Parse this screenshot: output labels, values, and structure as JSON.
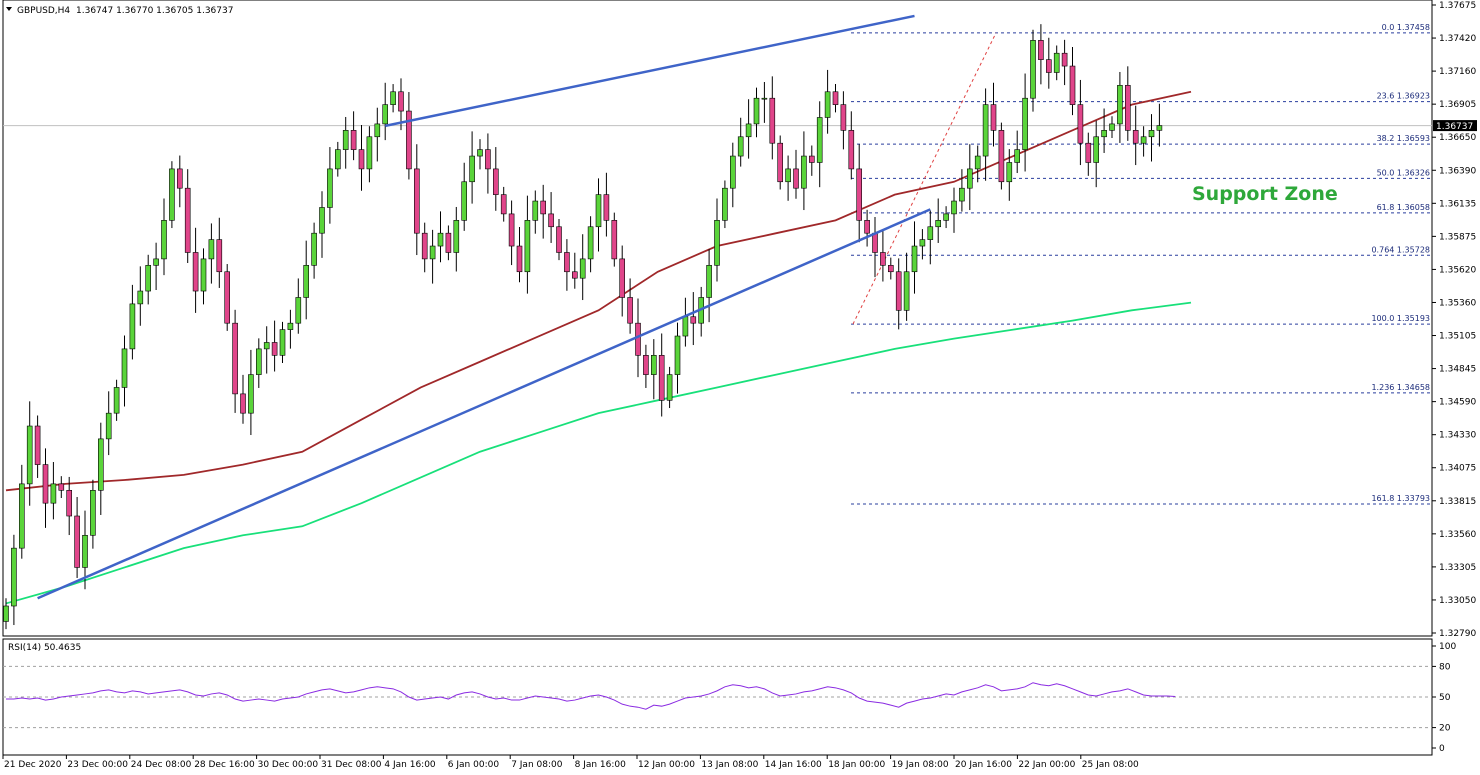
{
  "header": {
    "symbol": "GBPUSD,H4",
    "ohlc": "1.36747 1.36770 1.36705 1.36737"
  },
  "colors": {
    "bull": "#5ad43a",
    "bear": "#e0458a",
    "wick": "#000000",
    "trendline": "#3f64c8",
    "ma_slow": "#18e07a",
    "ma_fast": "#a0282a",
    "fib": "#2a3f9e",
    "rsi": "#8a2be2",
    "annotation": "#2ea83a",
    "price_tag_bg": "#000000"
  },
  "annotation": {
    "text": "Support Zone"
  },
  "price_axis": {
    "ticks": [
      "1.37675",
      "1.37420",
      "1.37160",
      "1.36905",
      "1.36650",
      "1.36390",
      "1.36135",
      "1.35875",
      "1.35620",
      "1.35360",
      "1.35105",
      "1.34845",
      "1.34590",
      "1.34330",
      "1.34075",
      "1.33815",
      "1.33560",
      "1.33305",
      "1.33050",
      "1.32790"
    ],
    "current_price_label": "1.36737",
    "current_price": 1.36737,
    "range": [
      1.3279,
      1.37675
    ]
  },
  "time_axis": {
    "labels": [
      "21 Dec 2020",
      "23 Dec 00:00",
      "24 Dec 08:00",
      "28 Dec 16:00",
      "30 Dec 00:00",
      "31 Dec 08:00",
      "4 Jan 16:00",
      "6 Jan 00:00",
      "7 Jan 08:00",
      "8 Jan 16:00",
      "12 Jan 00:00",
      "13 Jan 08:00",
      "14 Jan 16:00",
      "18 Jan 00:00",
      "19 Jan 08:00",
      "20 Jan 16:00",
      "22 Jan 00:00",
      "25 Jan 08:00"
    ]
  },
  "fibonacci": {
    "levels": [
      {
        "label": "0.0 1.37458",
        "price": 1.37458
      },
      {
        "label": "23.6 1.36923",
        "price": 1.36923
      },
      {
        "label": "38.2 1.36593",
        "price": 1.36593
      },
      {
        "label": "50.0 1.36326",
        "price": 1.36326
      },
      {
        "label": "61.8 1.36058",
        "price": 1.36058
      },
      {
        "label": "0.764 1.35728",
        "price": 1.35728
      },
      {
        "label": "100.0 1.35193",
        "price": 1.35193
      },
      {
        "label": "1.236 1.34658",
        "price": 1.34658
      },
      {
        "label": "161.8 1.33793",
        "price": 1.33793
      }
    ]
  },
  "rsi": {
    "label": "RSI(14) 50.4635",
    "levels": [
      "100",
      "80",
      "50",
      "20",
      "0"
    ],
    "range": [
      0,
      100
    ],
    "guides": [
      80,
      50,
      20
    ]
  },
  "chart_data": {
    "type": "candlestick",
    "title": "GBPUSD,H4",
    "xlabel": "",
    "ylabel": "",
    "ylim": [
      1.3279,
      1.37675
    ],
    "grid": false,
    "closes": [
      1.33,
      1.3345,
      1.3395,
      1.344,
      1.341,
      1.338,
      1.3395,
      1.339,
      1.337,
      1.333,
      1.3355,
      1.339,
      1.343,
      1.345,
      1.347,
      1.35,
      1.3535,
      1.3545,
      1.3565,
      1.357,
      1.36,
      1.364,
      1.3625,
      1.3575,
      1.3545,
      1.357,
      1.3585,
      1.356,
      1.352,
      1.3465,
      1.345,
      1.348,
      1.35,
      1.3505,
      1.3495,
      1.3515,
      1.352,
      1.354,
      1.3565,
      1.359,
      1.361,
      1.364,
      1.3655,
      1.367,
      1.3655,
      1.364,
      1.3665,
      1.3675,
      1.369,
      1.37,
      1.3685,
      1.364,
      1.359,
      1.357,
      1.358,
      1.359,
      1.3575,
      1.36,
      1.363,
      1.365,
      1.3655,
      1.364,
      1.362,
      1.3605,
      1.358,
      1.356,
      1.36,
      1.3615,
      1.3605,
      1.3595,
      1.3575,
      1.356,
      1.3555,
      1.357,
      1.3595,
      1.362,
      1.36,
      1.357,
      1.354,
      1.352,
      1.3495,
      1.348,
      1.3495,
      1.346,
      1.348,
      1.351,
      1.3525,
      1.352,
      1.354,
      1.3565,
      1.36,
      1.3625,
      1.365,
      1.3665,
      1.3675,
      1.3695,
      1.3695,
      1.366,
      1.363,
      1.364,
      1.3625,
      1.365,
      1.3645,
      1.368,
      1.37,
      1.369,
      1.367,
      1.364,
      1.36,
      1.359,
      1.3575,
      1.3565,
      1.356,
      1.353,
      1.356,
      1.358,
      1.3585,
      1.3595,
      1.36,
      1.3605,
      1.3615,
      1.3625,
      1.364,
      1.365,
      1.369,
      1.367,
      1.363,
      1.3645,
      1.3655,
      1.3695,
      1.374,
      1.3725,
      1.3715,
      1.373,
      1.372,
      1.369,
      1.366,
      1.3645,
      1.3665,
      1.367,
      1.3675,
      1.3705,
      1.367,
      1.366,
      1.3665,
      1.367,
      1.36737
    ],
    "series": [
      {
        "name": "",
        "type": "line",
        "x_range": [
          0,
          150
        ],
        "values": [
          1.339,
          1.3395,
          1.3398,
          1.3402,
          1.341,
          1.342,
          1.3445,
          1.347,
          1.349,
          1.351,
          1.353,
          1.356,
          1.358,
          1.359,
          1.36,
          1.362,
          1.363,
          1.365,
          1.367,
          1.369,
          1.37
        ]
      },
      {
        "name": "",
        "type": "line",
        "x_range": [
          0,
          150
        ],
        "values": [
          1.3302,
          1.3315,
          1.333,
          1.3345,
          1.3355,
          1.3362,
          1.338,
          1.34,
          1.342,
          1.3435,
          1.345,
          1.346,
          1.347,
          1.348,
          1.349,
          1.35,
          1.3508,
          1.3515,
          1.3522,
          1.353,
          1.3536
        ]
      }
    ],
    "trendlines": [
      {
        "name": "",
        "points": [
          [
            4,
            1.3306
          ],
          [
            117,
            1.36085
          ]
        ]
      },
      {
        "name": "",
        "points": [
          [
            48,
            1.36735
          ],
          [
            115,
            1.3759
          ]
        ]
      }
    ],
    "rsi_values": [
      48,
      48,
      49,
      48,
      49,
      47,
      48,
      50,
      51,
      52,
      53,
      54,
      56,
      57,
      55,
      54,
      56,
      55,
      53,
      54,
      55,
      56,
      57,
      55,
      52,
      51,
      53,
      54,
      52,
      48,
      46,
      47,
      48,
      47,
      46,
      48,
      49,
      50,
      53,
      55,
      57,
      58,
      56,
      54,
      55,
      57,
      59,
      60,
      59,
      58,
      55,
      50,
      47,
      48,
      49,
      50,
      48,
      52,
      54,
      55,
      53,
      50,
      48,
      49,
      47,
      47,
      49,
      51,
      50,
      49,
      48,
      46,
      47,
      49,
      51,
      52,
      50,
      47,
      43,
      41,
      40,
      38,
      42,
      41,
      43,
      46,
      49,
      50,
      51,
      53,
      56,
      60,
      62,
      61,
      59,
      60,
      58,
      54,
      51,
      52,
      53,
      55,
      56,
      58,
      60,
      59,
      57,
      54,
      49,
      46,
      45,
      44,
      42,
      40,
      44,
      46,
      48,
      49,
      51,
      53,
      52,
      55,
      57,
      59,
      62,
      60,
      56,
      57,
      58,
      60,
      64,
      62,
      61,
      63,
      61,
      58,
      55,
      52,
      51,
      53,
      55,
      56,
      58,
      55,
      52,
      51,
      51,
      51,
      50.4635
    ]
  }
}
